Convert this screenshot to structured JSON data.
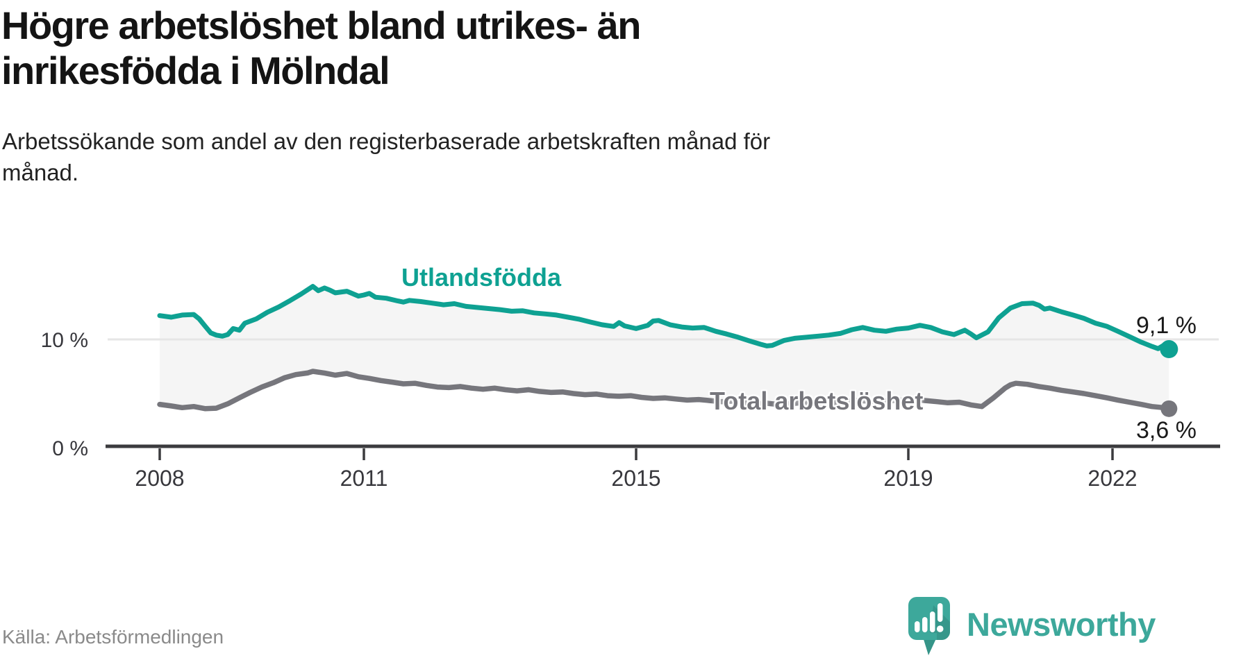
{
  "header": {
    "title_lines": [
      "Högre arbetslöshet bland utrikes- än",
      "inrikesfödda i Mölndal"
    ],
    "subtitle_lines": [
      "Arbetssökande som andel av den registerbaserade arbetskraften månad för",
      "månad."
    ]
  },
  "chart_data": {
    "type": "line",
    "unit": "%",
    "grid": "horizontal-only",
    "area_fill_between_series": true,
    "x_axis": {
      "ticks": [
        "2008",
        "2011",
        "2015",
        "2019",
        "2022"
      ],
      "tick_years": [
        2008,
        2011,
        2015,
        2019,
        2022
      ],
      "start": 2008,
      "end": 2023.5
    },
    "y_axis": {
      "ticks": [
        {
          "value": 0,
          "label": "0 %"
        },
        {
          "value": 10,
          "label": "10 %"
        }
      ],
      "range": [
        0,
        20
      ]
    },
    "series": [
      {
        "name": "Utlandsfödda",
        "color": "#0ea192",
        "end_value": 9.1,
        "end_label": "9,1 %",
        "points": [
          [
            2008.0,
            12.2
          ],
          [
            2008.17,
            12.05
          ],
          [
            2008.33,
            12.25
          ],
          [
            2008.5,
            12.3
          ],
          [
            2008.58,
            11.9
          ],
          [
            2008.67,
            11.2
          ],
          [
            2008.75,
            10.6
          ],
          [
            2008.83,
            10.4
          ],
          [
            2008.92,
            10.3
          ],
          [
            2009.0,
            10.45
          ],
          [
            2009.08,
            11.0
          ],
          [
            2009.17,
            10.85
          ],
          [
            2009.25,
            11.5
          ],
          [
            2009.42,
            11.9
          ],
          [
            2009.58,
            12.5
          ],
          [
            2009.75,
            13.0
          ],
          [
            2009.92,
            13.6
          ],
          [
            2010.08,
            14.2
          ],
          [
            2010.25,
            14.9
          ],
          [
            2010.33,
            14.5
          ],
          [
            2010.42,
            14.75
          ],
          [
            2010.5,
            14.55
          ],
          [
            2010.58,
            14.3
          ],
          [
            2010.75,
            14.45
          ],
          [
            2010.92,
            14.0
          ],
          [
            2011.0,
            14.1
          ],
          [
            2011.08,
            14.25
          ],
          [
            2011.17,
            13.9
          ],
          [
            2011.33,
            13.8
          ],
          [
            2011.5,
            13.55
          ],
          [
            2011.58,
            13.45
          ],
          [
            2011.67,
            13.6
          ],
          [
            2011.83,
            13.5
          ],
          [
            2012.0,
            13.35
          ],
          [
            2012.17,
            13.2
          ],
          [
            2012.33,
            13.3
          ],
          [
            2012.5,
            13.05
          ],
          [
            2012.67,
            12.95
          ],
          [
            2012.83,
            12.85
          ],
          [
            2013.0,
            12.75
          ],
          [
            2013.17,
            12.6
          ],
          [
            2013.33,
            12.65
          ],
          [
            2013.5,
            12.45
          ],
          [
            2013.67,
            12.35
          ],
          [
            2013.83,
            12.25
          ],
          [
            2014.0,
            12.05
          ],
          [
            2014.17,
            11.85
          ],
          [
            2014.33,
            11.6
          ],
          [
            2014.5,
            11.35
          ],
          [
            2014.67,
            11.2
          ],
          [
            2014.75,
            11.55
          ],
          [
            2014.83,
            11.25
          ],
          [
            2015.0,
            11.0
          ],
          [
            2015.17,
            11.3
          ],
          [
            2015.25,
            11.7
          ],
          [
            2015.33,
            11.75
          ],
          [
            2015.5,
            11.35
          ],
          [
            2015.67,
            11.15
          ],
          [
            2015.83,
            11.05
          ],
          [
            2016.0,
            11.1
          ],
          [
            2016.17,
            10.75
          ],
          [
            2016.33,
            10.5
          ],
          [
            2016.5,
            10.2
          ],
          [
            2016.67,
            9.85
          ],
          [
            2016.83,
            9.55
          ],
          [
            2016.92,
            9.4
          ],
          [
            2017.0,
            9.45
          ],
          [
            2017.17,
            9.9
          ],
          [
            2017.33,
            10.1
          ],
          [
            2017.5,
            10.2
          ],
          [
            2017.67,
            10.3
          ],
          [
            2017.83,
            10.4
          ],
          [
            2018.0,
            10.55
          ],
          [
            2018.17,
            10.9
          ],
          [
            2018.33,
            11.1
          ],
          [
            2018.5,
            10.85
          ],
          [
            2018.67,
            10.75
          ],
          [
            2018.83,
            10.95
          ],
          [
            2019.0,
            11.05
          ],
          [
            2019.17,
            11.3
          ],
          [
            2019.33,
            11.1
          ],
          [
            2019.5,
            10.7
          ],
          [
            2019.67,
            10.45
          ],
          [
            2019.83,
            10.85
          ],
          [
            2019.92,
            10.5
          ],
          [
            2020.0,
            10.15
          ],
          [
            2020.17,
            10.7
          ],
          [
            2020.33,
            12.0
          ],
          [
            2020.5,
            12.9
          ],
          [
            2020.67,
            13.3
          ],
          [
            2020.83,
            13.35
          ],
          [
            2020.92,
            13.15
          ],
          [
            2021.0,
            12.8
          ],
          [
            2021.08,
            12.9
          ],
          [
            2021.25,
            12.55
          ],
          [
            2021.42,
            12.25
          ],
          [
            2021.58,
            11.95
          ],
          [
            2021.75,
            11.5
          ],
          [
            2021.92,
            11.2
          ],
          [
            2022.08,
            10.75
          ],
          [
            2022.25,
            10.25
          ],
          [
            2022.42,
            9.75
          ],
          [
            2022.58,
            9.35
          ],
          [
            2022.67,
            9.15
          ],
          [
            2022.75,
            9.45
          ],
          [
            2022.83,
            9.1
          ]
        ]
      },
      {
        "name": "Total arbetslöshet",
        "color": "#76767c",
        "end_value": 3.6,
        "end_label": "3,6 %",
        "points": [
          [
            2008.0,
            4.0
          ],
          [
            2008.17,
            3.85
          ],
          [
            2008.33,
            3.7
          ],
          [
            2008.5,
            3.8
          ],
          [
            2008.67,
            3.6
          ],
          [
            2008.83,
            3.65
          ],
          [
            2009.0,
            4.05
          ],
          [
            2009.17,
            4.6
          ],
          [
            2009.33,
            5.1
          ],
          [
            2009.5,
            5.6
          ],
          [
            2009.67,
            6.0
          ],
          [
            2009.83,
            6.45
          ],
          [
            2010.0,
            6.75
          ],
          [
            2010.17,
            6.9
          ],
          [
            2010.25,
            7.05
          ],
          [
            2010.42,
            6.9
          ],
          [
            2010.58,
            6.7
          ],
          [
            2010.75,
            6.85
          ],
          [
            2010.92,
            6.55
          ],
          [
            2011.08,
            6.4
          ],
          [
            2011.25,
            6.2
          ],
          [
            2011.42,
            6.05
          ],
          [
            2011.58,
            5.9
          ],
          [
            2011.75,
            5.95
          ],
          [
            2011.92,
            5.75
          ],
          [
            2012.08,
            5.6
          ],
          [
            2012.25,
            5.55
          ],
          [
            2012.42,
            5.65
          ],
          [
            2012.58,
            5.5
          ],
          [
            2012.75,
            5.4
          ],
          [
            2012.92,
            5.5
          ],
          [
            2013.08,
            5.35
          ],
          [
            2013.25,
            5.25
          ],
          [
            2013.42,
            5.35
          ],
          [
            2013.58,
            5.2
          ],
          [
            2013.75,
            5.1
          ],
          [
            2013.92,
            5.15
          ],
          [
            2014.08,
            5.0
          ],
          [
            2014.25,
            4.9
          ],
          [
            2014.42,
            4.95
          ],
          [
            2014.58,
            4.8
          ],
          [
            2014.75,
            4.75
          ],
          [
            2014.92,
            4.8
          ],
          [
            2015.08,
            4.65
          ],
          [
            2015.25,
            4.55
          ],
          [
            2015.42,
            4.6
          ],
          [
            2015.58,
            4.5
          ],
          [
            2015.75,
            4.4
          ],
          [
            2015.92,
            4.45
          ],
          [
            2016.08,
            4.35
          ],
          [
            2016.25,
            4.25
          ],
          [
            2016.42,
            4.3
          ],
          [
            2016.58,
            4.15
          ],
          [
            2016.75,
            4.05
          ],
          [
            2016.92,
            4.1
          ],
          [
            2017.08,
            4.0
          ],
          [
            2017.25,
            4.05
          ],
          [
            2017.42,
            4.15
          ],
          [
            2017.58,
            4.1
          ],
          [
            2017.75,
            4.2
          ],
          [
            2017.92,
            4.15
          ],
          [
            2018.08,
            4.25
          ],
          [
            2018.25,
            4.35
          ],
          [
            2018.42,
            4.3
          ],
          [
            2018.58,
            4.25
          ],
          [
            2018.75,
            4.35
          ],
          [
            2018.92,
            4.4
          ],
          [
            2019.08,
            4.45
          ],
          [
            2019.25,
            4.35
          ],
          [
            2019.42,
            4.25
          ],
          [
            2019.58,
            4.15
          ],
          [
            2019.75,
            4.2
          ],
          [
            2019.92,
            3.95
          ],
          [
            2020.08,
            3.8
          ],
          [
            2020.25,
            4.6
          ],
          [
            2020.42,
            5.5
          ],
          [
            2020.5,
            5.8
          ],
          [
            2020.58,
            5.95
          ],
          [
            2020.75,
            5.85
          ],
          [
            2020.92,
            5.65
          ],
          [
            2021.08,
            5.5
          ],
          [
            2021.25,
            5.3
          ],
          [
            2021.42,
            5.15
          ],
          [
            2021.58,
            5.0
          ],
          [
            2021.75,
            4.8
          ],
          [
            2021.92,
            4.6
          ],
          [
            2022.08,
            4.4
          ],
          [
            2022.25,
            4.2
          ],
          [
            2022.42,
            4.0
          ],
          [
            2022.58,
            3.8
          ],
          [
            2022.75,
            3.7
          ],
          [
            2022.83,
            3.6
          ]
        ]
      }
    ]
  },
  "footer": {
    "source": "Källa: Arbetsförmedlingen",
    "brand": "Newsworthy"
  },
  "colors": {
    "teal": "#0ea192",
    "gray": "#76767c",
    "fill": "#f5f5f5",
    "grid": "#e6e6e6",
    "axis": "#3b3b3e",
    "brand_teal": "#3da89b"
  }
}
